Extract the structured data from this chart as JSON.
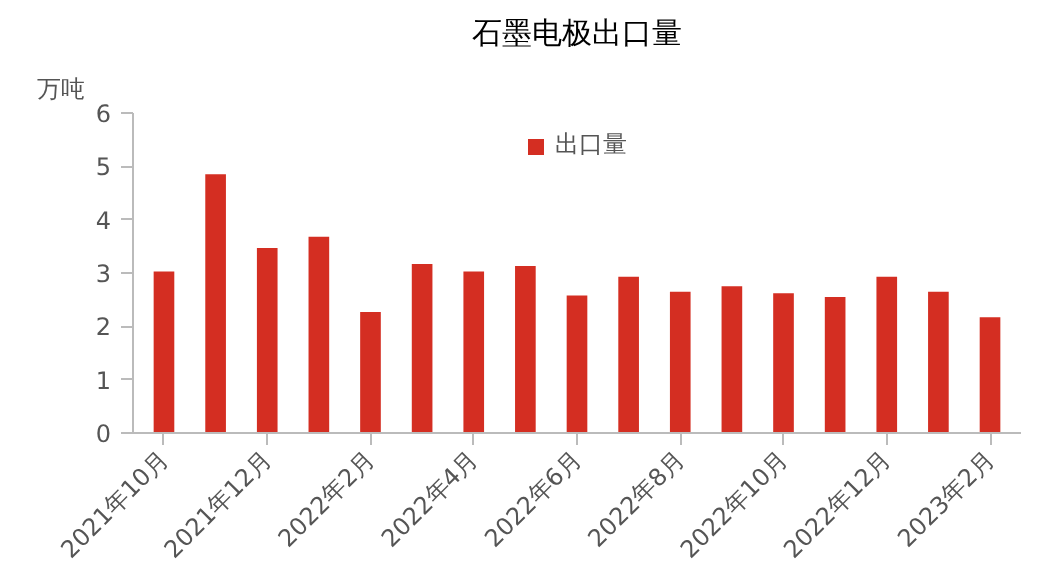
{
  "chart_data": {
    "type": "bar",
    "title": "石墨电极出口量",
    "ylabel": "万吨",
    "categories": [
      "2021年10月",
      null,
      "2021年12月",
      null,
      "2022年2月",
      null,
      "2022年4月",
      null,
      "2022年6月",
      null,
      "2022年8月",
      null,
      "2022年10月",
      null,
      "2022年12月",
      null,
      "2023年2月"
    ],
    "series": [
      {
        "name": "出口量",
        "color": "#d42e22",
        "values": [
          3.03,
          4.85,
          3.47,
          3.68,
          2.27,
          3.17,
          3.03,
          3.13,
          2.58,
          2.93,
          2.65,
          2.75,
          2.62,
          2.55,
          2.93,
          2.65,
          2.17
        ]
      }
    ],
    "ylim": [
      0,
      6
    ],
    "yticks": [
      0,
      1,
      2,
      3,
      4,
      5,
      6
    ],
    "grid": false,
    "legend": "top"
  }
}
